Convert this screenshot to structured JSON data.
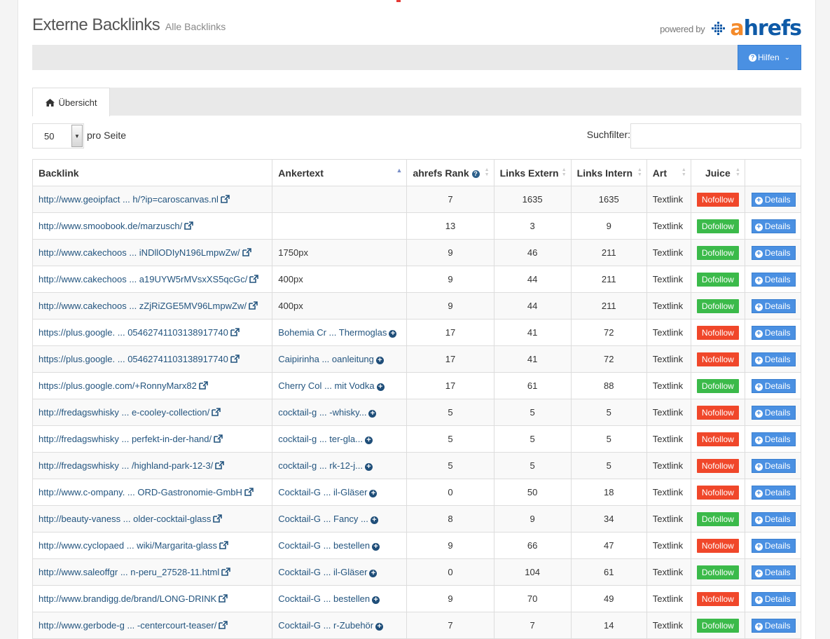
{
  "header": {
    "title": "Externe Backlinks",
    "subtitle": "Alle Backlinks",
    "powered_by": "powered by",
    "logo_a": "a",
    "logo_rest": "hrefs"
  },
  "toolbar": {
    "help_label": "Hilfen"
  },
  "tabs": [
    {
      "label": "Übersicht"
    }
  ],
  "controls": {
    "page_size": "50",
    "per_page_label": "pro Seite",
    "filter_label": "Suchfilter:",
    "filter_value": ""
  },
  "table": {
    "columns": [
      "Backlink",
      "Ankertext",
      "ahrefs Rank",
      "Links Extern",
      "Links Intern",
      "Art",
      "Juice",
      ""
    ],
    "details_label": "Details",
    "rows": [
      {
        "backlink": "http://www.geoipfact ... h/?ip=caroscanvas.nl",
        "anchor": "",
        "anchor_link": false,
        "rank": "7",
        "ext": "1635",
        "int": "1635",
        "art": "Textlink",
        "juice": "Nofollow"
      },
      {
        "backlink": "http://www.smoobook.de/marzusch/",
        "anchor": "",
        "anchor_link": false,
        "rank": "13",
        "ext": "3",
        "int": "9",
        "art": "Textlink",
        "juice": "Dofollow"
      },
      {
        "backlink": "http://www.cakechoos ... iNDllODIyN196LmpwZw/",
        "anchor": "1750px",
        "anchor_link": false,
        "rank": "9",
        "ext": "46",
        "int": "211",
        "art": "Textlink",
        "juice": "Dofollow"
      },
      {
        "backlink": "http://www.cakechoos ... a19UYW5rMVsxXS5qcGc/",
        "anchor": "400px",
        "anchor_link": false,
        "rank": "9",
        "ext": "44",
        "int": "211",
        "art": "Textlink",
        "juice": "Dofollow"
      },
      {
        "backlink": "http://www.cakechoos ... zZjRiZGE5MV96LmpwZw/",
        "anchor": "400px",
        "anchor_link": false,
        "rank": "9",
        "ext": "44",
        "int": "211",
        "art": "Textlink",
        "juice": "Dofollow"
      },
      {
        "backlink": "https://plus.google. ... 05462741103138917740",
        "anchor": "Bohemia Cr ... Thermoglas",
        "anchor_link": true,
        "rank": "17",
        "ext": "41",
        "int": "72",
        "art": "Textlink",
        "juice": "Nofollow"
      },
      {
        "backlink": "https://plus.google. ... 05462741103138917740",
        "anchor": "Caipirinha ... oanleitung",
        "anchor_link": true,
        "rank": "17",
        "ext": "41",
        "int": "72",
        "art": "Textlink",
        "juice": "Nofollow"
      },
      {
        "backlink": "https://plus.google.com/+RonnyMarx82",
        "anchor": "Cherry Col ... mit Vodka",
        "anchor_link": true,
        "rank": "17",
        "ext": "61",
        "int": "88",
        "art": "Textlink",
        "juice": "Dofollow"
      },
      {
        "backlink": "http://fredagswhisky ... e-cooley-collection/",
        "anchor": "cocktail-g ... -whisky...",
        "anchor_link": true,
        "rank": "5",
        "ext": "5",
        "int": "5",
        "art": "Textlink",
        "juice": "Nofollow"
      },
      {
        "backlink": "http://fredagswhisky ... perfekt-in-der-hand/",
        "anchor": "cocktail-g ... ter-gla...",
        "anchor_link": true,
        "rank": "5",
        "ext": "5",
        "int": "5",
        "art": "Textlink",
        "juice": "Nofollow"
      },
      {
        "backlink": "http://fredagswhisky ... /highland-park-12-3/",
        "anchor": "cocktail-g ... rk-12-j...",
        "anchor_link": true,
        "rank": "5",
        "ext": "5",
        "int": "5",
        "art": "Textlink",
        "juice": "Nofollow"
      },
      {
        "backlink": "http://www.c-ompany. ... ORD-Gastronomie-GmbH",
        "anchor": "Cocktail-G ... il-Gläser",
        "anchor_link": true,
        "rank": "0",
        "ext": "50",
        "int": "18",
        "art": "Textlink",
        "juice": "Nofollow"
      },
      {
        "backlink": "http://beauty-vaness ... older-cocktail-glass",
        "anchor": "Cocktail-G ... Fancy ...",
        "anchor_link": true,
        "rank": "8",
        "ext": "9",
        "int": "34",
        "art": "Textlink",
        "juice": "Dofollow"
      },
      {
        "backlink": "http://www.cyclopaed ... wiki/Margarita-glass",
        "anchor": "Cocktail-G ... bestellen",
        "anchor_link": true,
        "rank": "9",
        "ext": "66",
        "int": "47",
        "art": "Textlink",
        "juice": "Nofollow"
      },
      {
        "backlink": "http://www.saleoffgr ... n-peru_27528-11.html",
        "anchor": "Cocktail-G ... il-Gläser",
        "anchor_link": true,
        "rank": "0",
        "ext": "104",
        "int": "61",
        "art": "Textlink",
        "juice": "Dofollow"
      },
      {
        "backlink": "http://www.brandigg.de/brand/LONG-DRINK",
        "anchor": "Cocktail-G ... bestellen",
        "anchor_link": true,
        "rank": "9",
        "ext": "70",
        "int": "49",
        "art": "Textlink",
        "juice": "Nofollow"
      },
      {
        "backlink": "http://www.gerbode-g ... -centercourt-teaser/",
        "anchor": "Cocktail-G ... r-Zubehör",
        "anchor_link": true,
        "rank": "7",
        "ext": "7",
        "int": "14",
        "art": "Textlink",
        "juice": "Dofollow"
      }
    ]
  },
  "colors": {
    "accent": "#4a90e2",
    "link": "#24557f",
    "nofollow": "#f0472a",
    "dofollow": "#3bba4a",
    "logo_orange": "#f48a2a",
    "logo_blue": "#0e5aa7"
  }
}
